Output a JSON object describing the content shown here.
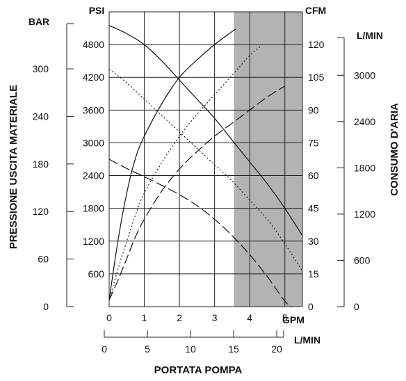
{
  "chart_data": {
    "type": "line",
    "title": "",
    "xlabel": "PORTATA POMPA",
    "ylabel_left": "PRESSIONE USCITA MATERIALE",
    "ylabel_right": "CONSUMO D'ARIA",
    "axes": {
      "gpm": {
        "unit": "GPM",
        "range": [
          0,
          5.5
        ],
        "ticks": [
          "0",
          "1",
          "2",
          "3",
          "4",
          "5"
        ]
      },
      "lmin_x": {
        "unit": "L/MIN",
        "range": [
          0,
          20.8
        ],
        "ticks": [
          "0",
          "5",
          "10",
          "15",
          "20"
        ]
      },
      "psi": {
        "unit": "PSI",
        "range": [
          0,
          5400
        ],
        "ticks": [
          "600",
          "1200",
          "1800",
          "2400",
          "3000",
          "3600",
          "4200",
          "4800"
        ]
      },
      "bar": {
        "unit": "BAR",
        "range": [
          0,
          372
        ],
        "ticks": [
          "0",
          "60",
          "120",
          "180",
          "240",
          "300"
        ]
      },
      "cfm": {
        "unit": "CFM",
        "range": [
          0,
          135
        ],
        "ticks": [
          "0",
          "15",
          "30",
          "45",
          "60",
          "75",
          "90",
          "105",
          "120"
        ]
      },
      "lmin_y": {
        "unit": "L/MIN",
        "range": [
          0,
          3823
        ],
        "ticks": [
          "0",
          "600",
          "1200",
          "1800",
          "2400",
          "3000"
        ]
      }
    },
    "shaded_region_gpm": [
      3.55,
      5.5
    ],
    "series": [
      {
        "axis": "psi",
        "style": "solid",
        "x": [
          0,
          0.5,
          1,
          1.5,
          2,
          2.5,
          3,
          3.5,
          4,
          4.5,
          5,
          5.5
        ],
        "y": [
          5150,
          5000,
          4800,
          4500,
          4150,
          3800,
          3450,
          3050,
          2650,
          2250,
          1800,
          1300
        ]
      },
      {
        "axis": "psi",
        "style": "dotted",
        "x": [
          0,
          0.5,
          1,
          1.5,
          2,
          2.5,
          3,
          3.5,
          4,
          4.5,
          5,
          5.5
        ],
        "y": [
          4350,
          4100,
          3800,
          3500,
          3200,
          2900,
          2600,
          2300,
          1950,
          1600,
          1150,
          650
        ]
      },
      {
        "axis": "psi",
        "style": "dashed",
        "x": [
          0,
          0.5,
          1,
          1.5,
          2,
          2.5,
          3,
          3.5,
          4,
          4.5,
          5,
          5.2
        ],
        "y": [
          2700,
          2530,
          2380,
          2220,
          2050,
          1850,
          1600,
          1300,
          950,
          550,
          100,
          0
        ]
      },
      {
        "axis": "cfm",
        "style": "solid",
        "x": [
          0,
          0.25,
          0.5,
          0.75,
          1,
          1.5,
          2,
          2.5,
          3,
          3.5,
          3.6
        ],
        "y": [
          3,
          30,
          52,
          68,
          78,
          93,
          105,
          113,
          120,
          126,
          127
        ]
      },
      {
        "axis": "cfm",
        "style": "dotted",
        "x": [
          0,
          0.25,
          0.5,
          0.75,
          1,
          1.5,
          2,
          2.5,
          3,
          3.5,
          4,
          4.3
        ],
        "y": [
          3,
          17,
          30,
          42,
          52,
          66,
          78,
          88,
          97,
          106,
          115,
          119
        ]
      },
      {
        "axis": "cfm",
        "style": "dashed",
        "x": [
          0,
          0.25,
          0.5,
          0.75,
          1,
          1.5,
          2,
          2.5,
          3,
          3.5,
          4,
          4.5,
          5
        ],
        "y": [
          3,
          12,
          22,
          32,
          40,
          53,
          63,
          71,
          78,
          84,
          90,
          96,
          101
        ]
      }
    ]
  }
}
